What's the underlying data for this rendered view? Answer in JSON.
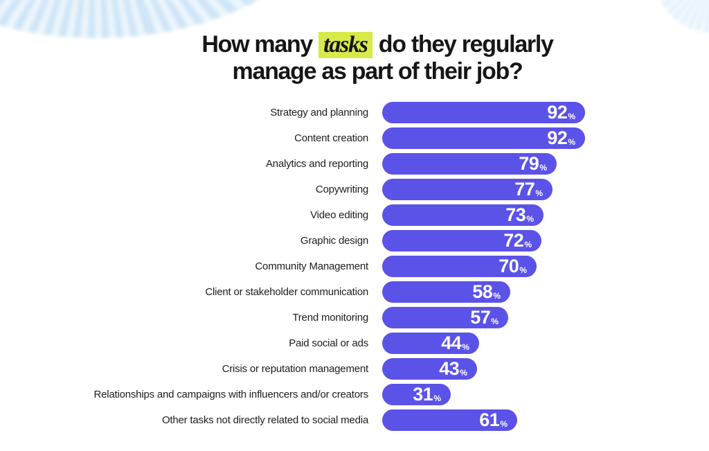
{
  "title": {
    "part1": "How many",
    "highlight": "tasks",
    "part2": "do they regularly",
    "line2": "manage as part of their job?",
    "highlight_bg": "#d8e94a"
  },
  "chart_data": {
    "type": "bar",
    "orientation": "horizontal",
    "title": "How many tasks do they regularly manage as part of their job?",
    "unit": "%",
    "xlim": [
      0,
      100
    ],
    "grid": false,
    "legend": false,
    "bar_color": "#5b52e8",
    "value_label_color": "#ffffff",
    "categories": [
      "Strategy and planning",
      "Content creation",
      "Analytics and reporting",
      "Copywriting",
      "Video editing",
      "Graphic design",
      "Community Management",
      "Client or stakeholder communication",
      "Trend monitoring",
      "Paid social or ads",
      "Crisis or reputation management",
      "Relationships and campaigns with influencers and/or creators",
      "Other tasks not directly related to social media"
    ],
    "values": [
      92,
      92,
      79,
      77,
      73,
      72,
      70,
      58,
      57,
      44,
      43,
      31,
      61
    ]
  },
  "decor": {
    "stripe_color_a": "#cbe4f7",
    "stripe_color_b": "#e8f4fc"
  }
}
